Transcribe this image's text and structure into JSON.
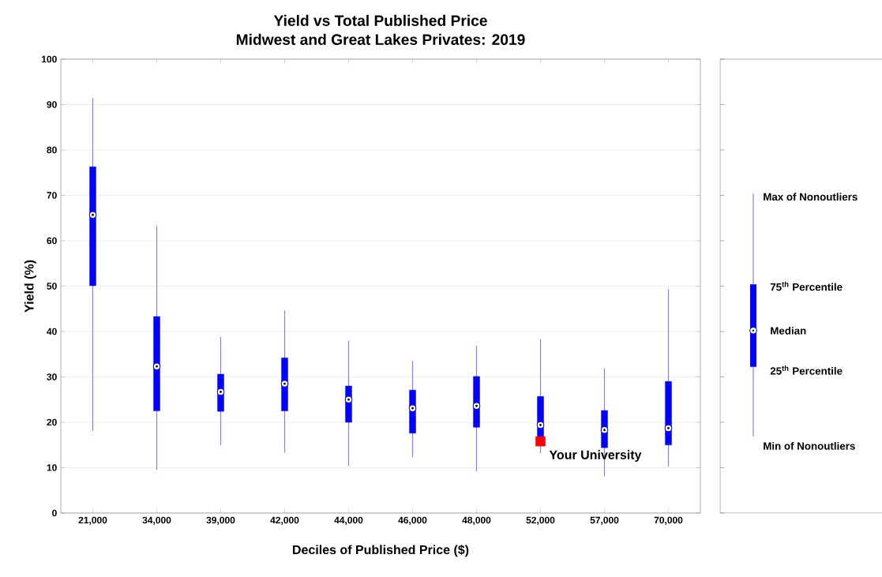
{
  "chart_data": [
    {
      "type": "box",
      "title": "Yield vs Total Published Price",
      "subtitle": "Midwest and Great Lakes Privates: 2019",
      "xlabel": "Deciles of Published Price ($)",
      "ylabel": "Yield (%)",
      "color": "#0000ff",
      "categories": [
        "21,000",
        "34,000",
        "39,000",
        "42,000",
        "44,000",
        "46,000",
        "48,000",
        "52,000",
        "57,000",
        "70,000"
      ],
      "boxes": [
        {
          "low": 18.1,
          "q1": 50.1,
          "median": 65.7,
          "q3": 76.3,
          "high": 91.4
        },
        {
          "low": 9.5,
          "q1": 22.5,
          "median": 32.3,
          "q3": 43.3,
          "high": 63.2
        },
        {
          "low": 15.0,
          "q1": 22.4,
          "median": 26.7,
          "q3": 30.6,
          "high": 38.8
        },
        {
          "low": 13.3,
          "q1": 22.5,
          "median": 28.5,
          "q3": 34.2,
          "high": 44.6
        },
        {
          "low": 10.4,
          "q1": 20.0,
          "median": 25.0,
          "q3": 28.0,
          "high": 38.0
        },
        {
          "low": 12.3,
          "q1": 17.6,
          "median": 23.1,
          "q3": 27.1,
          "high": 33.5
        },
        {
          "low": 9.2,
          "q1": 18.9,
          "median": 23.6,
          "q3": 30.1,
          "high": 36.8
        },
        {
          "low": 13.2,
          "q1": 16.0,
          "median": 19.4,
          "q3": 25.7,
          "high": 38.3
        },
        {
          "low": 8.1,
          "q1": 14.4,
          "median": 18.3,
          "q3": 22.6,
          "high": 31.9
        },
        {
          "low": 10.3,
          "q1": 15.0,
          "median": 18.7,
          "q3": 29.0,
          "high": 49.3
        }
      ],
      "series": [
        {
          "type": "scatter",
          "name": "Your University",
          "color": "#ff0000",
          "marker": "square",
          "x": [
            "52,000"
          ],
          "values": [
            15.8
          ]
        }
      ],
      "marker": "circle",
      "ylim": [
        0,
        100
      ],
      "yticks": [
        0,
        10,
        20,
        30,
        40,
        50,
        60,
        70,
        80,
        90,
        100
      ],
      "grid": "y"
    },
    {
      "type": "other",
      "annotations": [
        "Max of Nonoutliers",
        "75$^{th}$ Percentile",
        "Median",
        "25$^{th}$ Percentile",
        "Min of Nonoutliers"
      ]
    }
  ]
}
